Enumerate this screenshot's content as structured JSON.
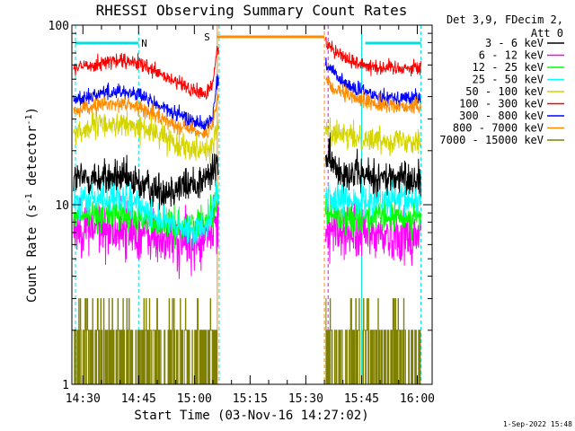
{
  "chart_data": {
    "type": "line",
    "title": "RHESSI Observing Summary Count Rates",
    "xlabel": "Start Time (03-Nov-16 14:27:02)",
    "ylabel_main": "Count Rate (s",
    "ylabel_sup1": "-1",
    "ylabel_mid": " detector",
    "ylabel_sup2": "-1",
    "ylabel_end": ")",
    "y_scale": "log",
    "ylim": [
      1,
      100
    ],
    "xlim": [
      "14:27:02",
      "16:04:00"
    ],
    "x_ticks": [
      "14:30",
      "14:45",
      "15:00",
      "15:15",
      "15:30",
      "15:45",
      "16:00"
    ],
    "y_ticks": [
      "1",
      "10",
      "100"
    ],
    "legend_header": [
      "Det 3,9, FDecim 2,",
      "Att 0"
    ],
    "legend_placement": "right",
    "timestamp": "1-Sep-2022 15:48",
    "annotations": [
      {
        "label": "N",
        "color": "#00e0e0",
        "start": "14:28",
        "end": "14:45"
      },
      {
        "label": "",
        "color": "#00e0e0",
        "start": "15:46",
        "end": "16:01"
      },
      {
        "label": "S",
        "color": "#ff8c00",
        "start": "15:06",
        "end": "15:35"
      }
    ],
    "vlines": [
      {
        "t": "14:28:00",
        "color": "#00e0e0",
        "style": "dash"
      },
      {
        "t": "14:45:00",
        "color": "#00e0e0",
        "style": "dash"
      },
      {
        "t": "15:06:10",
        "color": "#ff8c00",
        "style": "solid"
      },
      {
        "t": "15:06:40",
        "color": "#00e0e0",
        "style": "dash"
      },
      {
        "t": "15:35:00",
        "color": "#ff8c00",
        "style": "dash"
      },
      {
        "t": "15:36:00",
        "color": "#ff00ff",
        "style": "dash"
      },
      {
        "t": "15:45:00",
        "color": "#00e0e0",
        "style": "solid"
      },
      {
        "t": "16:01:00",
        "color": "#00e0e0",
        "style": "dash"
      }
    ],
    "segments": [
      [
        "14:27:30",
        "15:06:30"
      ],
      [
        "15:35:20",
        "16:01:00"
      ]
    ],
    "series": [
      {
        "name": "3 - 6 keV",
        "color": "#000000",
        "t": [
          "14:27",
          "14:35",
          "14:40",
          "14:45",
          "14:50",
          "14:55",
          "15:00",
          "15:03",
          "15:05",
          "15:06",
          "15:36",
          "15:38",
          "15:42",
          "15:50",
          "16:00"
        ],
        "v": [
          14,
          14,
          14,
          13,
          12,
          12.5,
          13,
          14,
          15,
          17,
          18,
          16,
          15,
          14,
          14
        ],
        "noise": 0.12
      },
      {
        "name": "6 - 12 keV",
        "color": "#ff00ff",
        "t": [
          "14:27",
          "14:35",
          "14:45",
          "14:50",
          "14:55",
          "15:00",
          "15:03",
          "15:05",
          "15:06",
          "15:36",
          "15:40",
          "15:50",
          "16:00"
        ],
        "v": [
          7.5,
          7.5,
          7,
          6.5,
          6.2,
          6,
          6.5,
          7,
          8,
          7.5,
          7,
          6.8,
          6.8
        ],
        "noise": 0.18
      },
      {
        "name": "12 - 25 keV",
        "color": "#00ff00",
        "t": [
          "14:27",
          "14:35",
          "14:45",
          "14:50",
          "14:55",
          "15:00",
          "15:03",
          "15:05",
          "15:06",
          "15:36",
          "15:40",
          "15:50",
          "16:00"
        ],
        "v": [
          8.5,
          9,
          8.5,
          8,
          7.5,
          7.8,
          8.5,
          9,
          11,
          9,
          8.5,
          8.5,
          8.5
        ],
        "noise": 0.1
      },
      {
        "name": "25 - 50 keV",
        "color": "#00ffff",
        "t": [
          "14:27",
          "14:35",
          "14:45",
          "14:50",
          "14:55",
          "15:00",
          "15:03",
          "15:05",
          "15:06",
          "15:36",
          "15:40",
          "15:50",
          "16:00"
        ],
        "v": [
          10,
          11,
          10,
          8.5,
          7.5,
          7,
          8,
          9.5,
          11.5,
          11,
          10.5,
          10.5,
          10.5
        ],
        "noise": 0.1
      },
      {
        "name": "50 - 100 keV",
        "color": "#d4d400",
        "t": [
          "14:27",
          "14:35",
          "14:40",
          "14:45",
          "14:50",
          "14:55",
          "15:00",
          "15:03",
          "15:05",
          "15:06",
          "15:36",
          "15:40",
          "15:50",
          "16:00"
        ],
        "v": [
          25,
          28,
          28,
          27,
          25,
          22,
          21,
          20.5,
          21,
          27,
          26,
          24,
          23,
          23
        ],
        "noise": 0.08
      },
      {
        "name": "100 - 300 keV",
        "color": "#ff0000",
        "t": [
          "14:27",
          "14:35",
          "14:40",
          "14:45",
          "14:50",
          "14:55",
          "15:00",
          "15:03",
          "15:05",
          "15:06",
          "15:36",
          "15:38",
          "15:42",
          "15:50",
          "16:00"
        ],
        "v": [
          57,
          62,
          63,
          61,
          54,
          48,
          43,
          41,
          47,
          72,
          80,
          72,
          63,
          58,
          58
        ],
        "noise": 0.05
      },
      {
        "name": "300 - 800 keV",
        "color": "#0000ff",
        "t": [
          "14:27",
          "14:35",
          "14:40",
          "14:45",
          "14:50",
          "14:55",
          "15:00",
          "15:03",
          "15:05",
          "15:06",
          "15:36",
          "15:38",
          "15:42",
          "15:50",
          "16:00"
        ],
        "v": [
          38,
          42,
          43,
          41,
          36,
          32,
          29,
          28,
          31,
          48,
          60,
          52,
          45,
          40,
          39
        ],
        "noise": 0.05
      },
      {
        "name": "800 - 7000 keV",
        "color": "#ff8c00",
        "t": [
          "14:27",
          "14:35",
          "14:40",
          "14:45",
          "14:50",
          "14:55",
          "15:00",
          "15:03",
          "15:05",
          "15:06",
          "15:36",
          "15:38",
          "15:42",
          "15:50",
          "16:00"
        ],
        "v": [
          33,
          36,
          37,
          35,
          31,
          28,
          26,
          25,
          27,
          38,
          48,
          43,
          40,
          36,
          35
        ],
        "noise": 0.05
      },
      {
        "name": "7000 - 15000 keV",
        "color": "#808000",
        "t": [
          "14:27",
          "15:06",
          "15:36",
          "16:00"
        ],
        "v": [
          2,
          2,
          2,
          2
        ],
        "noise": 0,
        "stepwise": true
      }
    ]
  }
}
